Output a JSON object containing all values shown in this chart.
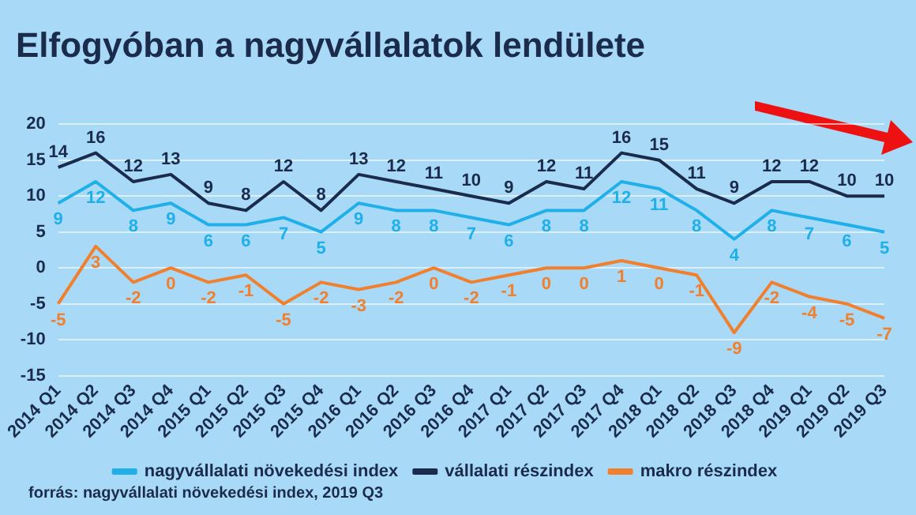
{
  "chart_data": {
    "type": "line",
    "title": "Elfogyóban a nagyvállalatok lendülete",
    "categories": [
      "2014 Q1",
      "2014 Q2",
      "2014 Q3",
      "2014 Q4",
      "2015 Q1",
      "2015 Q2",
      "2015 Q3",
      "2015 Q4",
      "2016 Q1",
      "2016 Q2",
      "2016 Q3",
      "2016 Q4",
      "2017 Q1",
      "2017 Q2",
      "2017 Q3",
      "2017 Q4",
      "2018 Q1",
      "2018 Q2",
      "2018 Q3",
      "2018 Q4",
      "2019 Q1",
      "2019 Q2",
      "2019 Q3"
    ],
    "series": [
      {
        "name": "nagyvállalati növekedési index",
        "color": "#1fb0ea",
        "values": [
          9,
          12,
          8,
          9,
          6,
          6,
          7,
          5,
          9,
          8,
          8,
          7,
          6,
          8,
          8,
          12,
          11,
          8,
          4,
          8,
          7,
          6,
          5
        ]
      },
      {
        "name": "vállalati részindex",
        "color": "#1a2b4c",
        "values": [
          14,
          16,
          12,
          13,
          9,
          8,
          12,
          8,
          13,
          12,
          11,
          10,
          9,
          12,
          11,
          16,
          15,
          11,
          9,
          12,
          12,
          10,
          10
        ]
      },
      {
        "name": "makro részindex",
        "color": "#f07f2e",
        "values": [
          -5,
          3,
          -2,
          0,
          -2,
          -1,
          -5,
          -2,
          -3,
          -2,
          0,
          -2,
          -1,
          0,
          0,
          1,
          0,
          -1,
          -9,
          -2,
          -4,
          -5,
          -7
        ]
      }
    ],
    "ylim": [
      -15,
      20
    ],
    "yticks": [
      -15,
      -10,
      -5,
      0,
      5,
      10,
      15,
      20
    ],
    "grid": "y",
    "legend": "bottom",
    "marker": "none",
    "line_style": "solid",
    "data_labels": true,
    "annotations": [
      "forrás: nagyvállalati növekedési index, 2019 Q3"
    ]
  }
}
